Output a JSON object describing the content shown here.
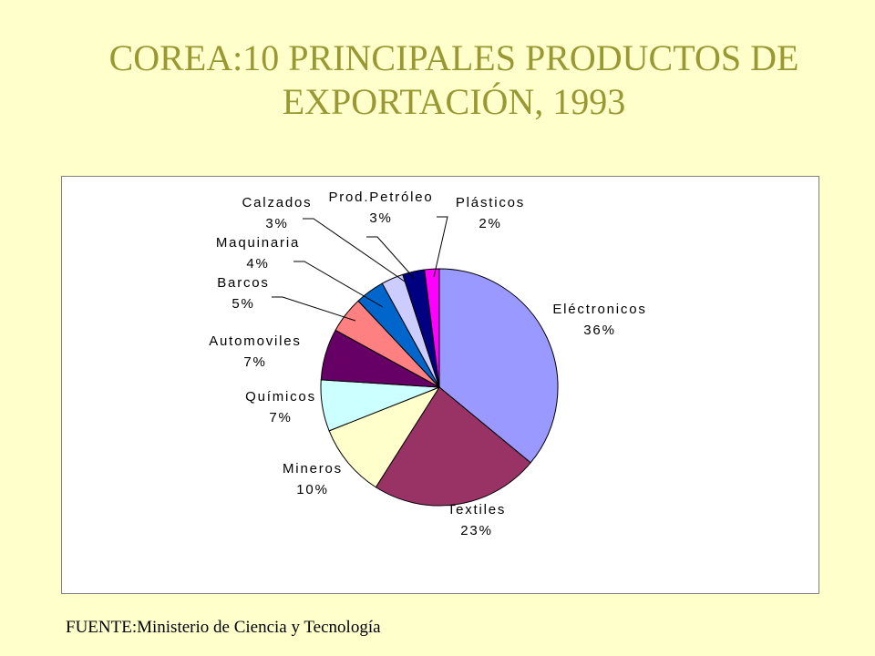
{
  "slide": {
    "title_line1": "COREA:10 PRINCIPALES PRODUCTOS DE",
    "title_line2": "EXPORTACIÓN, 1993",
    "source": "FUENTE:Ministerio de Ciencia y Tecnología"
  },
  "colors": {
    "background": "#FFFFCC",
    "title": "#999933"
  },
  "chart_data": {
    "type": "pie",
    "start_angle_deg_clockwise_from_top": 0,
    "direction": "clockwise",
    "slices": [
      {
        "name": "Eléctronicos",
        "label": "36%",
        "value": 36,
        "color": "#9999FF"
      },
      {
        "name": "Textiles",
        "label": "23%",
        "value": 23,
        "color": "#993366"
      },
      {
        "name": "Mineros",
        "label": "10%",
        "value": 10,
        "color": "#FFFFCC"
      },
      {
        "name": "Químicos",
        "label": "7%",
        "value": 7,
        "color": "#CCFFFF"
      },
      {
        "name": "Automoviles",
        "label": "7%",
        "value": 7,
        "color": "#660066"
      },
      {
        "name": "Barcos",
        "label": "5%",
        "value": 5,
        "color": "#FF8080"
      },
      {
        "name": "Maquinaria",
        "label": "4%",
        "value": 4,
        "color": "#0066CC"
      },
      {
        "name": "Calzados",
        "label": "3%",
        "value": 3,
        "color": "#CCCCFF"
      },
      {
        "name": "Prod.Petróleo",
        "label": "3%",
        "value": 3,
        "color": "#000080"
      },
      {
        "name": "Plásticos",
        "label": "2%",
        "value": 2,
        "color": "#FF00FF"
      }
    ]
  }
}
